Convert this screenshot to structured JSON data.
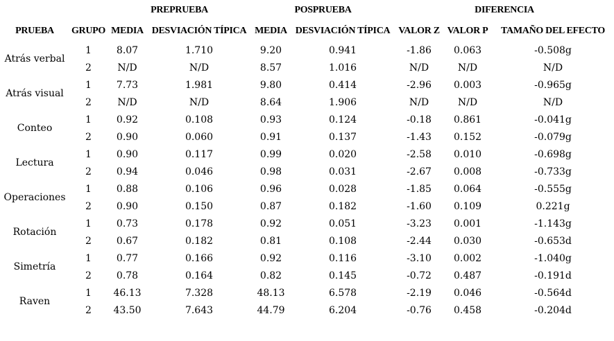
{
  "table": {
    "spanners": [
      "PREPRUEBA",
      "POSPRUEBA",
      "DIFERENCIA"
    ],
    "columns": [
      "PRUEBA",
      "GRUPO",
      "MEDIA",
      "DESVIACIÓN TÍPICA",
      "MEDIA",
      "DESVIACIÓN TÍPICA",
      "VALOR Z",
      "VALOR P",
      "TAMAÑO DEL EFECTO"
    ],
    "tests": [
      {
        "name": "Atrás verbal",
        "rows": [
          [
            "1",
            "8.07",
            "1.710",
            "9.20",
            "0.941",
            "-1.86",
            "0.063",
            "-0.508g"
          ],
          [
            "2",
            "N/D",
            "N/D",
            "8.57",
            "1.016",
            "N/D",
            "N/D",
            "N/D"
          ]
        ]
      },
      {
        "name": "Atrás visual",
        "rows": [
          [
            "1",
            "7.73",
            "1.981",
            "9.80",
            "0.414",
            "-2.96",
            "0.003",
            "-0.965g"
          ],
          [
            "2",
            "N/D",
            "N/D",
            "8.64",
            "1.906",
            "N/D",
            "N/D",
            "N/D"
          ]
        ]
      },
      {
        "name": "Conteo",
        "rows": [
          [
            "1",
            "0.92",
            "0.108",
            "0.93",
            "0.124",
            "-0.18",
            "0.861",
            "-0.041g"
          ],
          [
            "2",
            "0.90",
            "0.060",
            "0.91",
            "0.137",
            "-1.43",
            "0.152",
            "-0.079g"
          ]
        ]
      },
      {
        "name": "Lectura",
        "rows": [
          [
            "1",
            "0.90",
            "0.117",
            "0.99",
            "0.020",
            "-2.58",
            "0.010",
            "-0.698g"
          ],
          [
            "2",
            "0.94",
            "0.046",
            "0.98",
            "0.031",
            "-2.67",
            "0.008",
            "-0.733g"
          ]
        ]
      },
      {
        "name": "Operaciones",
        "rows": [
          [
            "1",
            "0.88",
            "0.106",
            "0.96",
            "0.028",
            "-1.85",
            "0.064",
            "-0.555g"
          ],
          [
            "2",
            "0.90",
            "0.150",
            "0.87",
            "0.182",
            "-1.60",
            "0.109",
            "0.221g"
          ]
        ]
      },
      {
        "name": "Rotación",
        "rows": [
          [
            "1",
            "0.73",
            "0.178",
            "0.92",
            "0.051",
            "-3.23",
            "0.001",
            "-1.143g"
          ],
          [
            "2",
            "0.67",
            "0.182",
            "0.81",
            "0.108",
            "-2.44",
            "0.030",
            "-0.653d"
          ]
        ]
      },
      {
        "name": "Simetría",
        "rows": [
          [
            "1",
            "0.77",
            "0.166",
            "0.92",
            "0.116",
            "-3.10",
            "0.002",
            "-1.040g"
          ],
          [
            "2",
            "0.78",
            "0.164",
            "0.82",
            "0.145",
            "-0.72",
            "0.487",
            "-0.191d"
          ]
        ]
      },
      {
        "name": "Raven",
        "rows": [
          [
            "1",
            "46.13",
            "7.328",
            "48.13",
            "6.578",
            "-2.19",
            "0.046",
            "-0.564d"
          ],
          [
            "2",
            "43.50",
            "7.643",
            "44.79",
            "6.204",
            "-0.76",
            "0.458",
            "-0.204d"
          ]
        ]
      }
    ]
  }
}
